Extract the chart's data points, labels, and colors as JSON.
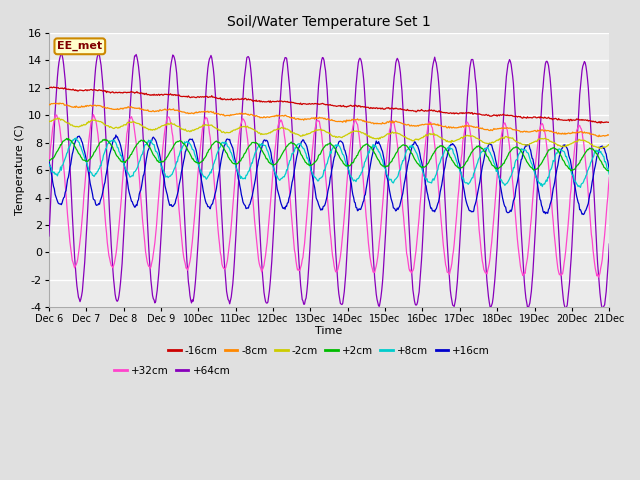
{
  "title": "Soil/Water Temperature Set 1",
  "xlabel": "Time",
  "ylabel": "Temperature (C)",
  "ylim": [
    -4,
    16
  ],
  "yticks": [
    -4,
    -2,
    0,
    2,
    4,
    6,
    8,
    10,
    12,
    14,
    16
  ],
  "background_color": "#e0e0e0",
  "plot_bg_color": "#ebebeb",
  "annotation_text": "EE_met",
  "annotation_bg": "#ffffcc",
  "annotation_border": "#cc8800",
  "series": [
    {
      "label": "-16cm",
      "color": "#cc0000",
      "base": 12.0,
      "slope": -0.167,
      "amp": 0.05,
      "phase": 0.0
    },
    {
      "label": "-8cm",
      "color": "#ff8800",
      "base": 10.8,
      "slope": -0.15,
      "amp": 0.1,
      "phase": 0.0
    },
    {
      "label": "-2cm",
      "color": "#cccc00",
      "base": 9.5,
      "slope": -0.11,
      "amp": 0.25,
      "phase": 0.0
    },
    {
      "label": "+2cm",
      "color": "#00bb00",
      "base": 7.5,
      "slope": -0.05,
      "amp": 0.8,
      "phase": 0.25
    },
    {
      "label": "+8cm",
      "color": "#00cccc",
      "base": 7.0,
      "slope": -0.06,
      "amp": 1.3,
      "phase": 0.45
    },
    {
      "label": "+16cm",
      "color": "#0000cc",
      "base": 6.0,
      "slope": -0.05,
      "amp": 2.5,
      "phase": 0.55
    },
    {
      "label": "+32cm",
      "color": "#ff44cc",
      "base": 4.5,
      "slope": -0.05,
      "amp": 5.5,
      "phase": -0.05
    },
    {
      "label": "+64cm",
      "color": "#8800bb",
      "base": 5.5,
      "slope": -0.04,
      "amp": 9.0,
      "phase": 0.08
    }
  ]
}
